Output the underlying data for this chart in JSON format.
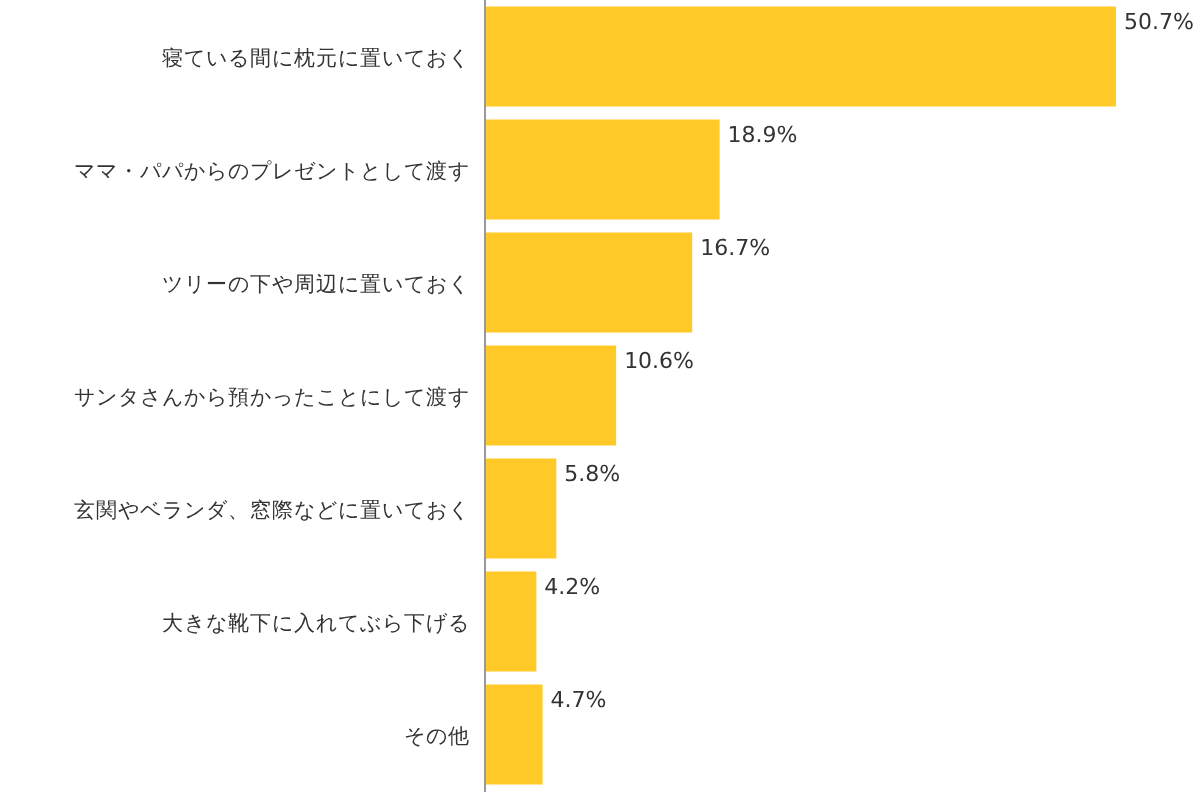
{
  "chart_data": {
    "type": "bar",
    "orientation": "horizontal",
    "categories": [
      "寝ている間に枕元に置いておく",
      "ママ・パパからのプレゼントとして渡す",
      "ツリーの下や周辺に置いておく",
      "サンタさんから預かったことにして渡す",
      "玄関やベランダ、窓際などに置いておく",
      "大きな靴下に入れてぶら下げる",
      "その他"
    ],
    "values": [
      50.7,
      18.9,
      16.7,
      10.6,
      5.8,
      4.2,
      4.7
    ],
    "value_labels": [
      "50.7%",
      "18.9%",
      "16.7%",
      "10.6%",
      "5.8%",
      "4.2%",
      "4.7%"
    ],
    "color": "#ffca28"
  }
}
